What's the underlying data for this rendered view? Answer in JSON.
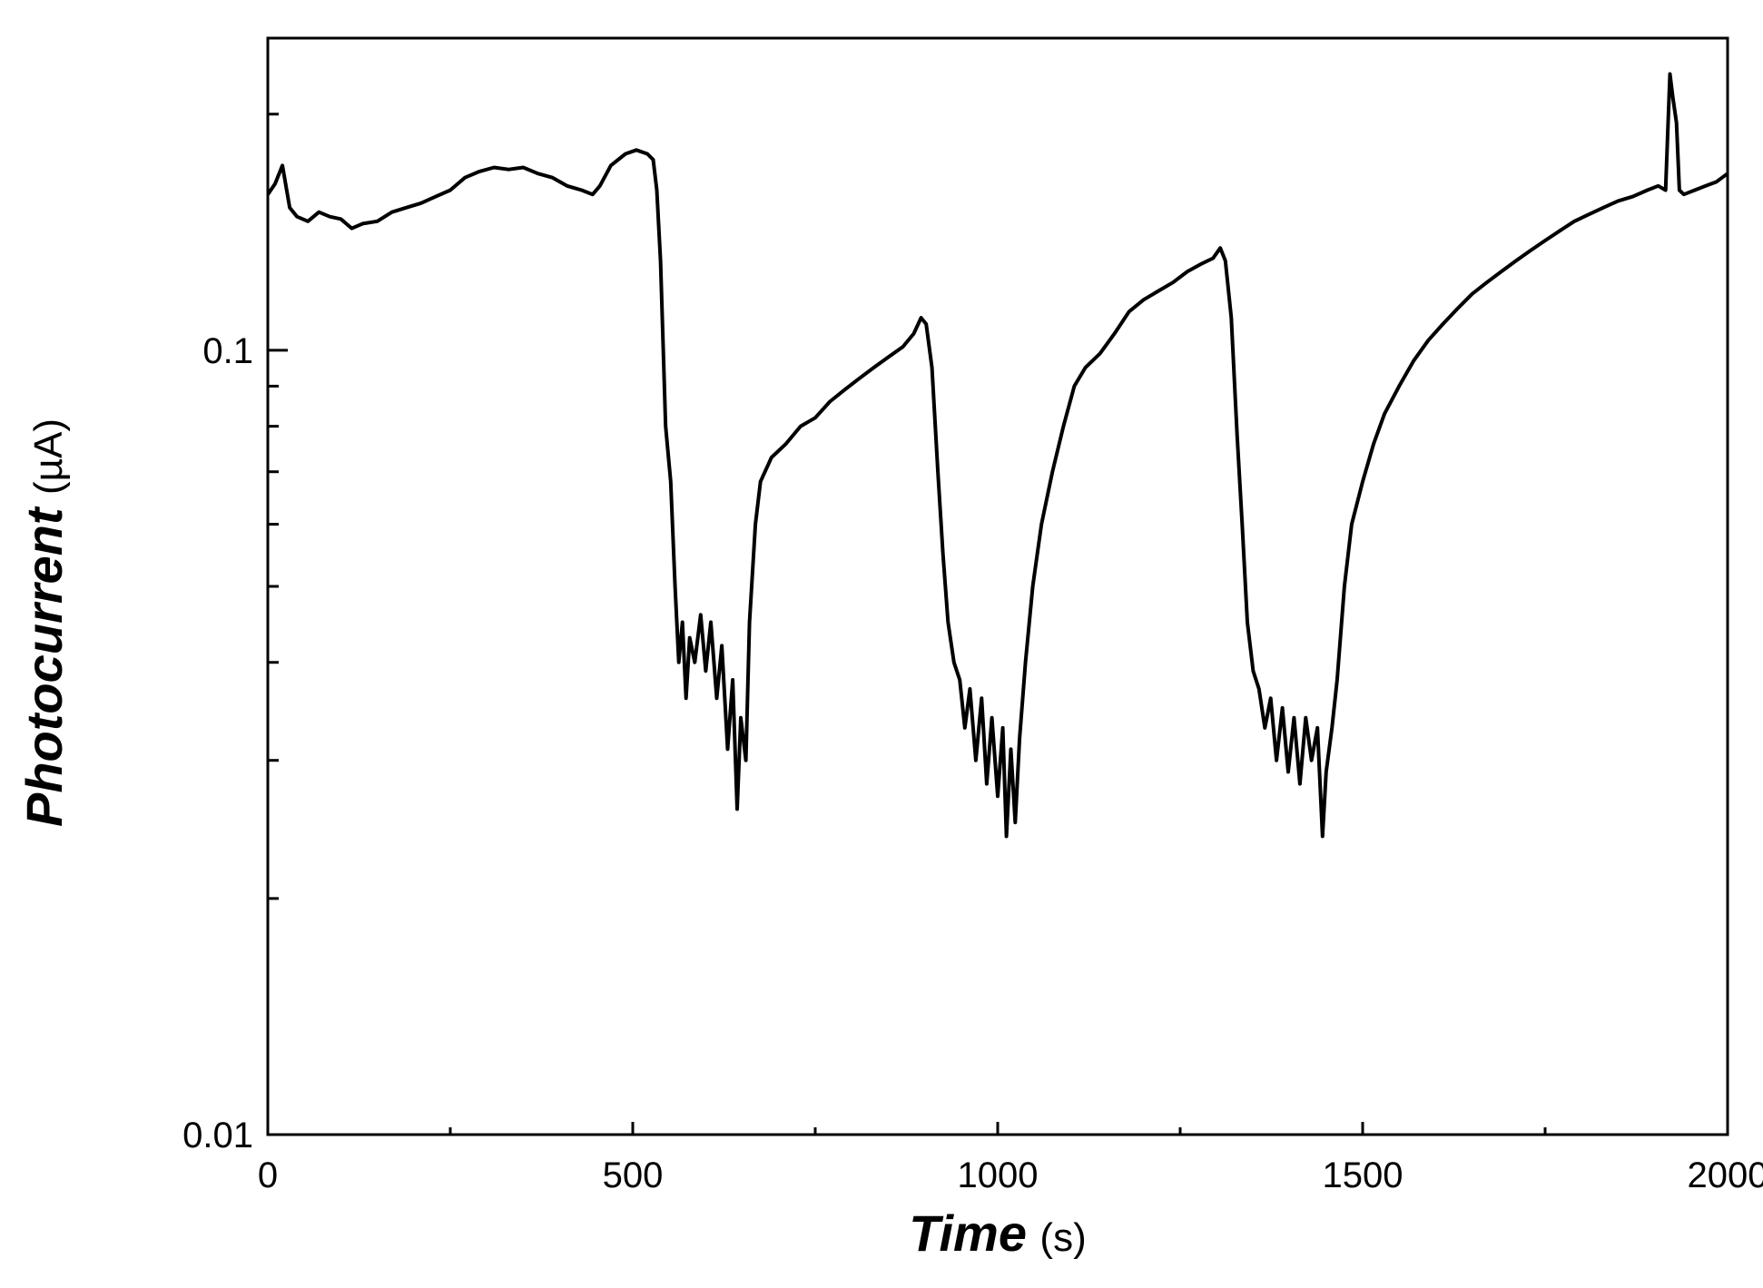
{
  "chart_data": {
    "type": "line",
    "title": "",
    "x_axis": {
      "label": "Time",
      "unit": "(s)",
      "range": [
        0,
        2000
      ],
      "ticks": [
        "0",
        "500",
        "1000",
        "1500",
        "2000"
      ],
      "tick_values": [
        0,
        500,
        1000,
        1500,
        2000
      ],
      "minor_step": 250
    },
    "y_axis": {
      "label": "Photocurrent",
      "unit": "(µA)",
      "scale": "log",
      "range": [
        0.01,
        0.25
      ],
      "ticks": [
        "0.01",
        "0.1"
      ],
      "tick_values": [
        0.01,
        0.1
      ],
      "minor_ticks": [
        0.02,
        0.03,
        0.04,
        0.05,
        0.06,
        0.07,
        0.08,
        0.09,
        0.2
      ]
    },
    "grid": false,
    "legend": "none",
    "line_color": "#000000",
    "series": [
      {
        "points": [
          [
            0,
            0.158
          ],
          [
            10,
            0.163
          ],
          [
            20,
            0.172
          ],
          [
            30,
            0.152
          ],
          [
            40,
            0.148
          ],
          [
            55,
            0.146
          ],
          [
            70,
            0.15
          ],
          [
            85,
            0.148
          ],
          [
            100,
            0.147
          ],
          [
            115,
            0.143
          ],
          [
            130,
            0.145
          ],
          [
            150,
            0.146
          ],
          [
            170,
            0.15
          ],
          [
            190,
            0.152
          ],
          [
            210,
            0.154
          ],
          [
            230,
            0.157
          ],
          [
            250,
            0.16
          ],
          [
            270,
            0.166
          ],
          [
            290,
            0.169
          ],
          [
            310,
            0.171
          ],
          [
            330,
            0.17
          ],
          [
            350,
            0.171
          ],
          [
            370,
            0.168
          ],
          [
            390,
            0.166
          ],
          [
            410,
            0.162
          ],
          [
            430,
            0.16
          ],
          [
            445,
            0.158
          ],
          [
            455,
            0.162
          ],
          [
            470,
            0.172
          ],
          [
            490,
            0.178
          ],
          [
            505,
            0.18
          ],
          [
            520,
            0.178
          ],
          [
            528,
            0.175
          ],
          [
            533,
            0.16
          ],
          [
            538,
            0.13
          ],
          [
            545,
            0.08
          ],
          [
            552,
            0.068
          ],
          [
            558,
            0.05
          ],
          [
            563,
            0.04
          ],
          [
            568,
            0.045
          ],
          [
            573,
            0.036
          ],
          [
            578,
            0.043
          ],
          [
            585,
            0.04
          ],
          [
            593,
            0.046
          ],
          [
            600,
            0.039
          ],
          [
            607,
            0.045
          ],
          [
            615,
            0.036
          ],
          [
            622,
            0.042
          ],
          [
            630,
            0.031
          ],
          [
            637,
            0.038
          ],
          [
            643,
            0.026
          ],
          [
            648,
            0.034
          ],
          [
            655,
            0.03
          ],
          [
            660,
            0.045
          ],
          [
            668,
            0.06
          ],
          [
            675,
            0.068
          ],
          [
            690,
            0.073
          ],
          [
            710,
            0.076
          ],
          [
            730,
            0.08
          ],
          [
            750,
            0.082
          ],
          [
            770,
            0.086
          ],
          [
            790,
            0.089
          ],
          [
            810,
            0.092
          ],
          [
            830,
            0.095
          ],
          [
            850,
            0.098
          ],
          [
            870,
            0.101
          ],
          [
            885,
            0.105
          ],
          [
            895,
            0.11
          ],
          [
            902,
            0.108
          ],
          [
            910,
            0.095
          ],
          [
            918,
            0.07
          ],
          [
            925,
            0.055
          ],
          [
            932,
            0.045
          ],
          [
            940,
            0.04
          ],
          [
            948,
            0.038
          ],
          [
            955,
            0.033
          ],
          [
            962,
            0.037
          ],
          [
            970,
            0.03
          ],
          [
            978,
            0.036
          ],
          [
            985,
            0.028
          ],
          [
            992,
            0.034
          ],
          [
            1000,
            0.027
          ],
          [
            1007,
            0.033
          ],
          [
            1012,
            0.024
          ],
          [
            1018,
            0.031
          ],
          [
            1024,
            0.025
          ],
          [
            1030,
            0.032
          ],
          [
            1038,
            0.04
          ],
          [
            1048,
            0.05
          ],
          [
            1060,
            0.06
          ],
          [
            1075,
            0.07
          ],
          [
            1090,
            0.08
          ],
          [
            1105,
            0.09
          ],
          [
            1120,
            0.095
          ],
          [
            1140,
            0.099
          ],
          [
            1160,
            0.105
          ],
          [
            1180,
            0.112
          ],
          [
            1200,
            0.116
          ],
          [
            1220,
            0.119
          ],
          [
            1240,
            0.122
          ],
          [
            1260,
            0.126
          ],
          [
            1280,
            0.129
          ],
          [
            1295,
            0.131
          ],
          [
            1305,
            0.135
          ],
          [
            1312,
            0.13
          ],
          [
            1320,
            0.11
          ],
          [
            1328,
            0.078
          ],
          [
            1335,
            0.06
          ],
          [
            1342,
            0.045
          ],
          [
            1350,
            0.039
          ],
          [
            1358,
            0.037
          ],
          [
            1366,
            0.033
          ],
          [
            1374,
            0.036
          ],
          [
            1382,
            0.03
          ],
          [
            1390,
            0.035
          ],
          [
            1398,
            0.029
          ],
          [
            1406,
            0.034
          ],
          [
            1414,
            0.028
          ],
          [
            1422,
            0.034
          ],
          [
            1430,
            0.03
          ],
          [
            1438,
            0.033
          ],
          [
            1445,
            0.024
          ],
          [
            1450,
            0.029
          ],
          [
            1458,
            0.033
          ],
          [
            1465,
            0.038
          ],
          [
            1475,
            0.05
          ],
          [
            1485,
            0.06
          ],
          [
            1500,
            0.068
          ],
          [
            1515,
            0.076
          ],
          [
            1530,
            0.083
          ],
          [
            1550,
            0.09
          ],
          [
            1570,
            0.097
          ],
          [
            1590,
            0.103
          ],
          [
            1610,
            0.108
          ],
          [
            1630,
            0.113
          ],
          [
            1650,
            0.118
          ],
          [
            1670,
            0.122
          ],
          [
            1690,
            0.126
          ],
          [
            1710,
            0.13
          ],
          [
            1730,
            0.134
          ],
          [
            1750,
            0.138
          ],
          [
            1770,
            0.142
          ],
          [
            1790,
            0.146
          ],
          [
            1810,
            0.149
          ],
          [
            1830,
            0.152
          ],
          [
            1850,
            0.155
          ],
          [
            1870,
            0.157
          ],
          [
            1890,
            0.16
          ],
          [
            1905,
            0.162
          ],
          [
            1915,
            0.16
          ],
          [
            1918,
            0.19
          ],
          [
            1921,
            0.225
          ],
          [
            1925,
            0.21
          ],
          [
            1930,
            0.195
          ],
          [
            1934,
            0.16
          ],
          [
            1940,
            0.158
          ],
          [
            1955,
            0.16
          ],
          [
            1970,
            0.162
          ],
          [
            1985,
            0.164
          ],
          [
            2000,
            0.168
          ]
        ]
      }
    ]
  }
}
